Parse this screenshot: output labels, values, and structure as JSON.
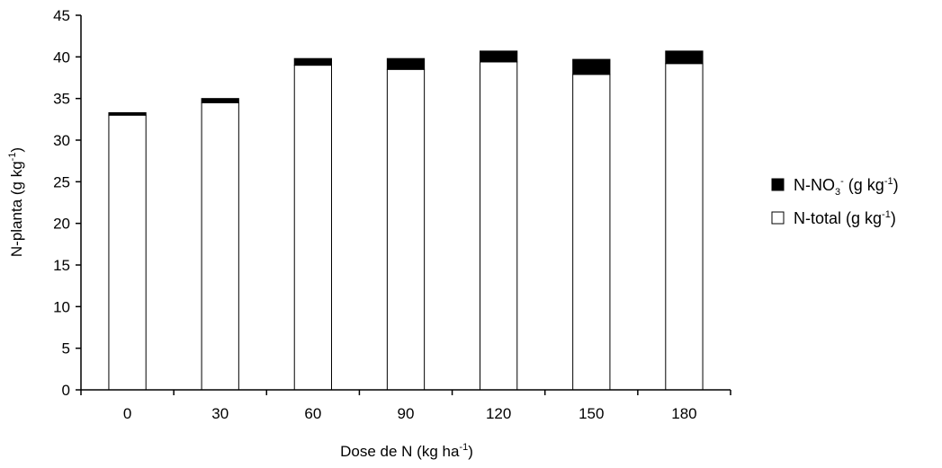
{
  "chart_data": {
    "type": "bar",
    "stacked": true,
    "categories": [
      "0",
      "30",
      "60",
      "90",
      "120",
      "150",
      "180"
    ],
    "series": [
      {
        "name": "N-total",
        "color": "#ffffff",
        "values": [
          33.0,
          34.5,
          39.0,
          38.5,
          39.4,
          37.9,
          39.2
        ]
      },
      {
        "name": "N-NO3",
        "color": "#000000",
        "values": [
          0.3,
          0.5,
          0.8,
          1.3,
          1.3,
          1.8,
          1.5
        ]
      }
    ],
    "ylim": [
      0,
      45
    ],
    "yticks": [
      0,
      5,
      10,
      15,
      20,
      25,
      30,
      35,
      40,
      45
    ],
    "xlabel": {
      "text": "Dose de N (kg ha",
      "sup": "-1",
      "close": ")"
    },
    "ylabel": {
      "text": "N-planta (g kg",
      "sup": "-1",
      "close": ")"
    },
    "legend": {
      "position": "right",
      "items": [
        {
          "series": "N-NO3",
          "text": "N-NO",
          "sub": "3",
          "sup_ion": "-",
          "unit": " (g kg",
          "sup": "-1",
          "close": ")"
        },
        {
          "series": "N-total",
          "text": "N-total (g kg",
          "sup": "-1",
          "close": ")"
        }
      ]
    },
    "grid": false
  }
}
